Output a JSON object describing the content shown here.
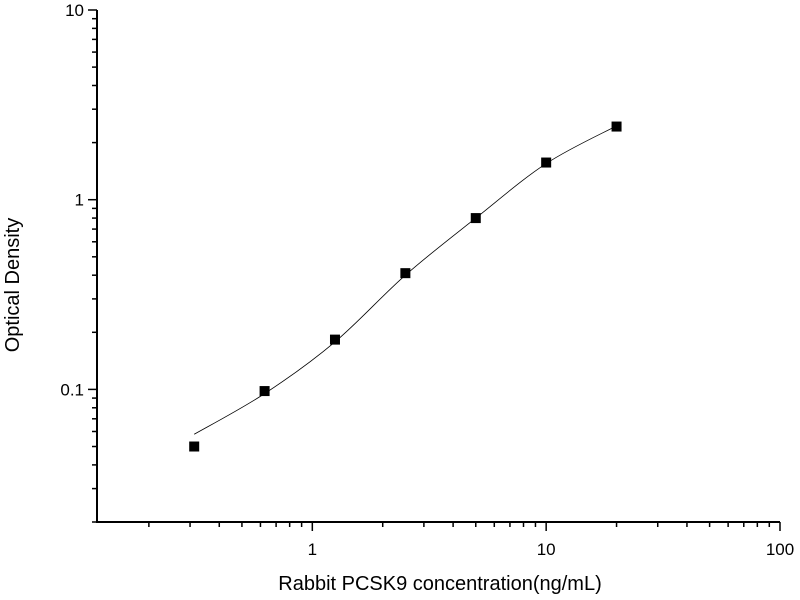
{
  "chart_data": {
    "type": "scatter",
    "title": "",
    "xlabel": "Rabbit PCSK9 concentration(ng/mL)",
    "ylabel": "Optical Density",
    "xscale": "log",
    "yscale": "log",
    "xlim": [
      0.12,
      100
    ],
    "ylim": [
      0.02,
      10
    ],
    "xticks": [
      1,
      10,
      100
    ],
    "xtick_labels": [
      "1",
      "10",
      "100"
    ],
    "yticks": [
      0.1,
      1,
      10
    ],
    "ytick_labels": [
      "0.1",
      "1",
      "10"
    ],
    "grid": false,
    "legend": "none",
    "points": {
      "x": [
        0.3125,
        0.625,
        1.25,
        2.5,
        5,
        10,
        20
      ],
      "y": [
        0.05,
        0.098,
        0.183,
        0.41,
        0.8,
        1.57,
        2.43
      ],
      "marker": "square",
      "color": "#000000"
    },
    "fit_curve": {
      "x": [
        0.3125,
        0.625,
        1.25,
        2.5,
        5,
        10,
        20
      ],
      "y": [
        0.058,
        0.095,
        0.178,
        0.4,
        0.8,
        1.55,
        2.45
      ],
      "color": "#000000"
    }
  }
}
